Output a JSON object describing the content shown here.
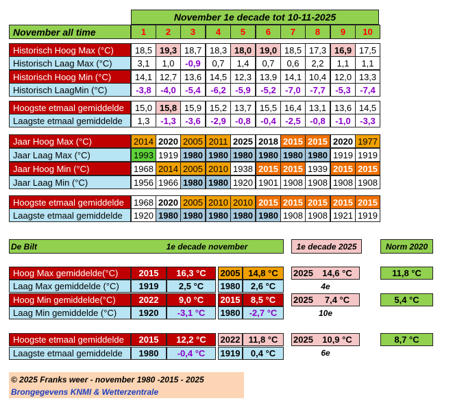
{
  "title": "November 1e decade tot 10-11-2025",
  "all_time_label": "November all time",
  "days": [
    "1",
    "2",
    "3",
    "4",
    "5",
    "6",
    "7",
    "8",
    "9",
    "10"
  ],
  "temp_rows": [
    {
      "label": "Historisch Hoog Max (°C)",
      "values": [
        "18,5",
        "19,3",
        "18,7",
        "18,3",
        "18,0",
        "19,0",
        "18,5",
        "17,3",
        "16,9",
        "17,5"
      ]
    },
    {
      "label": "Historisch Laag Max (°C)",
      "values": [
        "3,1",
        "1,0",
        "-0,9",
        "0,7",
        "1,4",
        "0,7",
        "0,6",
        "2,2",
        "1,1",
        "1,1"
      ]
    },
    {
      "label": "Historisch Hoog Min (°C)",
      "values": [
        "14,1",
        "12,7",
        "13,6",
        "14,5",
        "12,3",
        "13,9",
        "14,1",
        "10,4",
        "12,0",
        "13,3"
      ]
    },
    {
      "label": "Historisch LaagMin (°C)",
      "values": [
        "-3,8",
        "-4,0",
        "-5,4",
        "-6,2",
        "-5,9",
        "-5,2",
        "-7,0",
        "-7,7",
        "-5,3",
        "-7,4"
      ]
    }
  ],
  "etmaal_rows": [
    {
      "label": "Hoogste etmaal gemiddelde",
      "values": [
        "15,0",
        "15,8",
        "15,9",
        "15,2",
        "13,7",
        "15,5",
        "16,4",
        "13,1",
        "13,6",
        "14,5"
      ]
    },
    {
      "label": "Laagste etmaal gemiddelde",
      "values": [
        "1,3",
        "-1,3",
        "-3,6",
        "-2,9",
        "-0,8",
        "-0,4",
        "-2,5",
        "-0,8",
        "-1,0",
        "-3,3"
      ]
    }
  ],
  "year_rows": [
    {
      "label": "Jaar  Hoog Max (°C)",
      "values": [
        "2014",
        "2020",
        "2005",
        "2011",
        "2025",
        "2018",
        "2015",
        "2015",
        "2020",
        "1977"
      ]
    },
    {
      "label": "Jaar  Laag Max (°C)",
      "values": [
        "1993",
        "1919",
        "1980",
        "1980",
        "1980",
        "1980",
        "1980",
        "1980",
        "1919",
        "1919"
      ]
    },
    {
      "label": "Jaar  Hoog Min (°C)",
      "values": [
        "1968",
        "2014",
        "2005",
        "2010",
        "1938",
        "2015",
        "2015",
        "1939",
        "2015",
        "2015"
      ]
    },
    {
      "label": "Jaar  Laag Min (°C)",
      "values": [
        "1956",
        "1966",
        "1980",
        "1980",
        "1920",
        "1901",
        "1908",
        "1908",
        "1908",
        "1908"
      ]
    }
  ],
  "year_etmaal_rows": [
    {
      "label": "Hoogste etmaal gemiddelde",
      "values": [
        "1968",
        "2020",
        "2005",
        "2010",
        "2010",
        "2015",
        "2015",
        "2015",
        "2015",
        "2015"
      ]
    },
    {
      "label": "Laagste etmaal gemiddelde",
      "values": [
        "1920",
        "1980",
        "1980",
        "1980",
        "1980",
        "1980",
        "1908",
        "1908",
        "1921",
        "1919"
      ]
    }
  ],
  "debilt": {
    "location": "De Bilt",
    "decade_header": "1e decade november",
    "current_header": "1e decade 2025",
    "norm_header": "Norm 2020",
    "group1": [
      {
        "label": "Hoog Max gemiddelde(°C)",
        "y1": "2015",
        "v1": "16,3 °C",
        "y2": "2005",
        "v2": "14,8 °C"
      },
      {
        "label": "Laag Max gemiddelde (°C)",
        "y1": "1919",
        "v1": "2,5 °C",
        "y2": "1980",
        "v2": "2,6 °C"
      },
      {
        "label": "Hoog Min gemiddelde(°C)",
        "y1": "2022",
        "v1": "9,0 °C",
        "y2": "2015",
        "v2": "8,5 °C"
      },
      {
        "label": "Laag Min gemiddelde (°C)",
        "y1": "1920",
        "v1": "-3,1 °C",
        "y2": "1980",
        "v2": "-2,7 °C"
      }
    ],
    "group2": [
      {
        "label": "Hoogste etmaal gemiddelde",
        "y1": "2015",
        "v1": "12,2 °C",
        "y2": "2022",
        "v2": "11,8 °C"
      },
      {
        "label": "Laagste etmaal gemiddelde",
        "y1": "1980",
        "v1": "-0,4 °C",
        "y2": "1919",
        "v2": "0,4 °C"
      }
    ],
    "current": [
      {
        "year": "2025",
        "value": "14,6 °C",
        "rank": "4e"
      },
      {
        "year": "2025",
        "value": "7,4 °C",
        "rank": "10e"
      },
      {
        "year": "2025",
        "value": "10,9 °C",
        "rank": "6e"
      }
    ],
    "norms": [
      "11,8 °C",
      "5,4 °C",
      "8,7 °C"
    ]
  },
  "footer": {
    "line1": "© 2025 Franks weer  -  november 1980 -2015 - 2025",
    "line2": "Brongegevens KNMI & Wetterzentrale"
  }
}
